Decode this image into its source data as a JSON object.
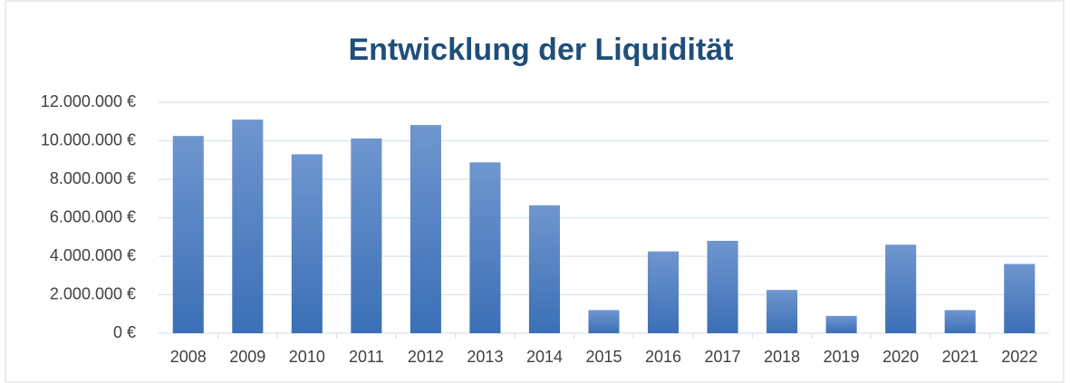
{
  "chart_data": {
    "type": "bar",
    "title": "Entwicklung der Liquidität",
    "categories": [
      "2008",
      "2009",
      "2010",
      "2011",
      "2012",
      "2013",
      "2014",
      "2015",
      "2016",
      "2017",
      "2018",
      "2019",
      "2020",
      "2021",
      "2022"
    ],
    "values": [
      10250000,
      11100000,
      9300000,
      10120000,
      10820000,
      8880000,
      6650000,
      1200000,
      4250000,
      4800000,
      2250000,
      900000,
      4600000,
      1200000,
      3600000
    ],
    "color": "#4a7cc0",
    "ylim": [
      0,
      12000000
    ],
    "yticks": [
      {
        "value": 0,
        "label": "0 €"
      },
      {
        "value": 2000000,
        "label": "2.000.000 €"
      },
      {
        "value": 4000000,
        "label": "4.000.000 €"
      },
      {
        "value": 6000000,
        "label": "6.000.000 €"
      },
      {
        "value": 8000000,
        "label": "8.000.000 €"
      },
      {
        "value": 10000000,
        "label": "10.000.000 €"
      },
      {
        "value": 12000000,
        "label": "12.000.000 €"
      }
    ],
    "grid": true
  }
}
